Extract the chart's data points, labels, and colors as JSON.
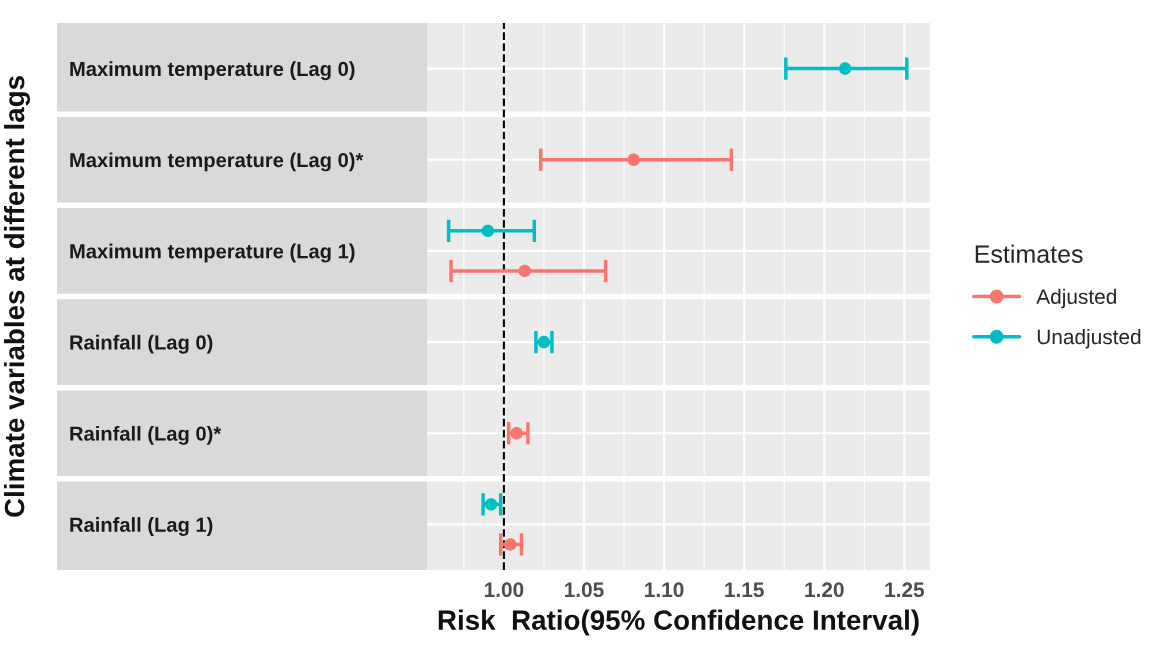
{
  "chart_data": {
    "type": "scatter",
    "orientation": "horizontal",
    "ylabel": "Climate variables at different lags",
    "xlabel": "Risk  Ratio(95% Confidence Interval)",
    "legend_title": "Estimates",
    "legend": "right",
    "categories": [
      "Maximum temperature (Lag 0)",
      "Maximum temperature (Lag 0)*",
      "Maximum temperature (Lag 1)",
      "Rainfall (Lag 0)",
      "Rainfall (Lag 0)*",
      "Rainfall (Lag 1)"
    ],
    "series": [
      {
        "name": "Adjusted",
        "color": "#f8766d",
        "values": [
          null,
          1.081,
          1.013,
          null,
          1.008,
          1.004
        ],
        "errors": [
          null,
          [
            1.023,
            1.142
          ],
          [
            0.967,
            1.0635
          ],
          null,
          [
            1.003,
            1.015
          ],
          [
            0.998,
            1.011
          ]
        ]
      },
      {
        "name": "Unadjusted",
        "color": "#00bfc4",
        "values": [
          1.213,
          null,
          0.99,
          1.025,
          null,
          0.992
        ],
        "errors": [
          [
            1.176,
            1.2515
          ],
          null,
          [
            0.9655,
            1.019
          ],
          [
            1.02,
            1.03
          ],
          null,
          [
            0.987,
            0.998
          ]
        ]
      }
    ],
    "xlim": [
      0.952,
      1.266
    ],
    "xticks": [
      {
        "value": 1,
        "label": "1.00"
      },
      {
        "value": 1.05,
        "label": "1.05"
      },
      {
        "value": 1.1,
        "label": "1.10"
      },
      {
        "value": 1.15,
        "label": "1.15"
      },
      {
        "value": 1.2,
        "label": "1.20"
      },
      {
        "value": 1.25,
        "label": "1.25"
      }
    ],
    "grid": true,
    "marker": "circle",
    "ref_lines": [
      {
        "axis": "x",
        "value": 1,
        "color": "#000000",
        "line_style": "dashed"
      }
    ]
  }
}
